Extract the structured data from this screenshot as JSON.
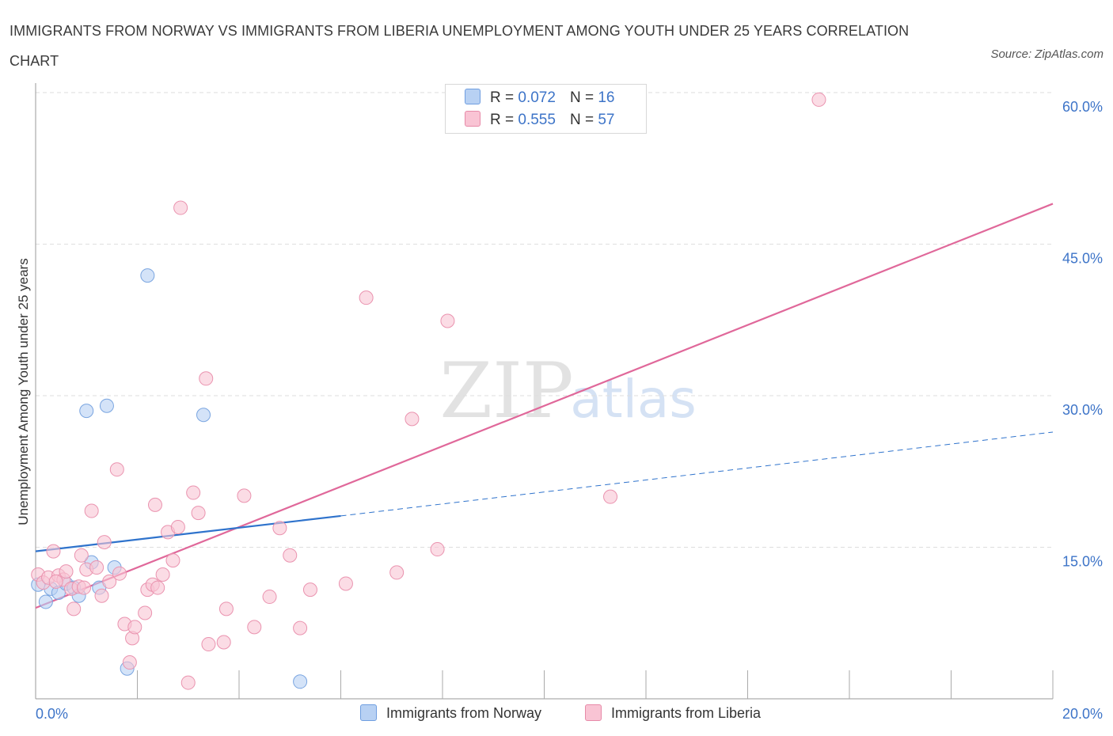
{
  "header": {
    "title": "IMMIGRANTS FROM NORWAY VS IMMIGRANTS FROM LIBERIA UNEMPLOYMENT AMONG YOUTH UNDER 25 YEARS CORRELATION CHART",
    "source": "Source: ZipAtlas.com"
  },
  "watermark": {
    "zip": "ZIP",
    "atlas": "atlas"
  },
  "legend": {
    "r_label": "R =",
    "n_label": "N =",
    "rows": [
      {
        "r": "0.072",
        "n": "16",
        "color": "#b8d1f3",
        "border": "#6f9ee0"
      },
      {
        "r": "0.555",
        "n": "57",
        "color": "#f9c4d4",
        "border": "#e78aa8"
      }
    ]
  },
  "colors": {
    "norway_fill": "#b8d1f3",
    "norway_stroke": "#7aa5e0",
    "norway_line": "#2f73cc",
    "liberia_fill": "#f9c4d4",
    "liberia_stroke": "#ea93af",
    "liberia_line": "#e0689a",
    "grid": "#dedede",
    "axis_label": "#3d74c8"
  },
  "chart_data": {
    "type": "scatter",
    "title": "IMMIGRANTS FROM NORWAY VS IMMIGRANTS FROM LIBERIA UNEMPLOYMENT AMONG YOUTH UNDER 25 YEARS CORRELATION CHART",
    "xlabel": "",
    "ylabel": "Unemployment Among Youth under 25 years",
    "xlim": [
      0,
      20
    ],
    "ylim": [
      0,
      60
    ],
    "x_tick_labels": [
      "0.0%",
      "20.0%"
    ],
    "y_tick_labels": [
      "15.0%",
      "30.0%",
      "45.0%",
      "60.0%"
    ],
    "y_ticks": [
      15,
      30,
      45,
      60
    ],
    "grid": true,
    "legend_position": "bottom",
    "series": [
      {
        "name": "Immigrants from Norway",
        "points": [
          [
            0.05,
            11.3
          ],
          [
            0.2,
            9.6
          ],
          [
            0.3,
            10.9
          ],
          [
            0.45,
            10.5
          ],
          [
            0.6,
            11.4
          ],
          [
            0.75,
            11.0
          ],
          [
            0.85,
            10.2
          ],
          [
            1.0,
            28.5
          ],
          [
            1.1,
            13.5
          ],
          [
            1.25,
            11.0
          ],
          [
            1.4,
            29.0
          ],
          [
            1.55,
            13.0
          ],
          [
            1.8,
            3.0
          ],
          [
            2.2,
            41.9
          ],
          [
            3.3,
            28.1
          ],
          [
            5.2,
            1.7
          ]
        ],
        "trend": {
          "x": [
            0,
            6.0
          ],
          "y": [
            14.6,
            18.1
          ]
        },
        "trend_extension": {
          "x": [
            6.0,
            20.0
          ],
          "y": [
            18.1,
            26.4
          ]
        }
      },
      {
        "name": "Immigrants from Liberia",
        "points": [
          [
            0.05,
            12.3
          ],
          [
            0.15,
            11.5
          ],
          [
            0.25,
            12.0
          ],
          [
            0.35,
            14.6
          ],
          [
            0.45,
            12.2
          ],
          [
            0.55,
            11.8
          ],
          [
            0.6,
            12.6
          ],
          [
            0.7,
            10.9
          ],
          [
            0.75,
            8.9
          ],
          [
            0.85,
            11.1
          ],
          [
            0.9,
            14.2
          ],
          [
            1.0,
            12.8
          ],
          [
            1.1,
            18.6
          ],
          [
            1.2,
            13.0
          ],
          [
            1.3,
            10.2
          ],
          [
            1.35,
            15.5
          ],
          [
            1.45,
            11.6
          ],
          [
            1.6,
            22.7
          ],
          [
            1.65,
            12.4
          ],
          [
            1.75,
            7.4
          ],
          [
            1.85,
            3.6
          ],
          [
            1.9,
            6.0
          ],
          [
            1.95,
            7.1
          ],
          [
            2.15,
            8.5
          ],
          [
            2.2,
            10.8
          ],
          [
            2.3,
            11.3
          ],
          [
            2.35,
            19.2
          ],
          [
            2.4,
            11.0
          ],
          [
            2.5,
            12.3
          ],
          [
            2.6,
            16.5
          ],
          [
            2.7,
            13.7
          ],
          [
            2.8,
            17.0
          ],
          [
            2.85,
            48.6
          ],
          [
            3.0,
            1.6
          ],
          [
            3.1,
            20.4
          ],
          [
            3.2,
            18.4
          ],
          [
            3.35,
            31.7
          ],
          [
            3.4,
            5.4
          ],
          [
            3.7,
            5.6
          ],
          [
            3.75,
            8.9
          ],
          [
            4.1,
            20.1
          ],
          [
            4.3,
            7.1
          ],
          [
            4.6,
            10.1
          ],
          [
            4.8,
            16.9
          ],
          [
            5.0,
            14.2
          ],
          [
            5.2,
            7.0
          ],
          [
            5.4,
            10.8
          ],
          [
            6.1,
            11.4
          ],
          [
            6.5,
            39.7
          ],
          [
            7.1,
            12.5
          ],
          [
            7.4,
            27.7
          ],
          [
            7.9,
            14.8
          ],
          [
            8.1,
            37.4
          ],
          [
            11.3,
            20.0
          ],
          [
            15.4,
            59.3
          ],
          [
            0.4,
            11.6
          ],
          [
            0.95,
            11.0
          ]
        ],
        "trend": {
          "x": [
            0,
            20.0
          ],
          "y": [
            9.0,
            49.0
          ]
        }
      }
    ]
  }
}
